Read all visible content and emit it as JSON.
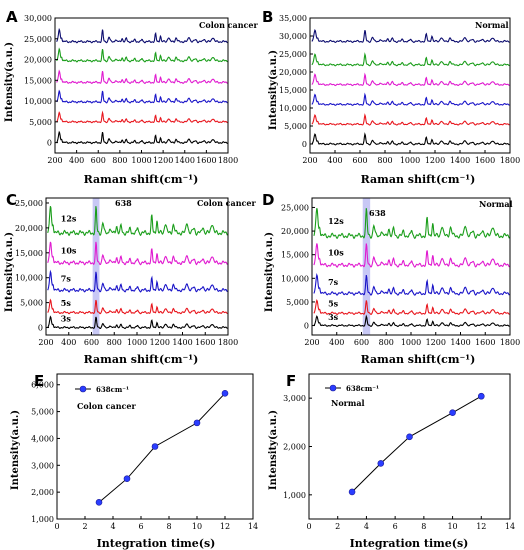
{
  "figure": {
    "background": "#ffffff"
  },
  "chart_data": [
    {
      "id": "A",
      "type": "line",
      "panel_label": "A",
      "annotation": "Colon cancer",
      "xlabel": "Raman shift(cm⁻¹)",
      "ylabel": "Intensity(a.u.)",
      "xlim": [
        200,
        1800
      ],
      "ylim": [
        -2500,
        30000
      ],
      "xticks": [
        200,
        400,
        600,
        800,
        1000,
        1200,
        1400,
        1600,
        1800
      ],
      "yticks": [
        0,
        5000,
        10000,
        15000,
        20000,
        25000,
        30000
      ],
      "ytick_labels": [
        "0",
        "5,000",
        "10,000",
        "15,000",
        "20,000",
        "25,000",
        "30,000"
      ],
      "series": [
        {
          "color": "#000000",
          "offset": 0,
          "scale": 2600
        },
        {
          "color": "#e8171e",
          "offset": 5000,
          "scale": 2300
        },
        {
          "color": "#1a14c8",
          "offset": 9800,
          "scale": 2700
        },
        {
          "color": "#e01bd0",
          "offset": 14500,
          "scale": 2800
        },
        {
          "color": "#1b9e1b",
          "offset": 19700,
          "scale": 2900
        },
        {
          "color": "#0b0b6e",
          "offset": 24300,
          "scale": 3000
        }
      ]
    },
    {
      "id": "B",
      "type": "line",
      "panel_label": "B",
      "annotation": "Normal",
      "xlabel": "Raman shift(cm⁻¹)",
      "ylabel": "Intensity(a.u.)",
      "xlim": [
        200,
        1800
      ],
      "ylim": [
        -2500,
        35000
      ],
      "xticks": [
        200,
        400,
        600,
        800,
        1000,
        1200,
        1400,
        1600,
        1800
      ],
      "yticks": [
        0,
        5000,
        10000,
        15000,
        20000,
        25000,
        30000,
        35000
      ],
      "ytick_labels": [
        "0",
        "5,000",
        "10,000",
        "15,000",
        "20,000",
        "25,000",
        "30,000",
        "35,000"
      ],
      "series": [
        {
          "color": "#000000",
          "offset": 0,
          "scale": 2800
        },
        {
          "color": "#e8171e",
          "offset": 5500,
          "scale": 2600
        },
        {
          "color": "#1a14c8",
          "offset": 11000,
          "scale": 2800
        },
        {
          "color": "#e01bd0",
          "offset": 16500,
          "scale": 2900
        },
        {
          "color": "#1b9e1b",
          "offset": 22000,
          "scale": 3000
        },
        {
          "color": "#0b0b6e",
          "offset": 28500,
          "scale": 3200
        }
      ]
    },
    {
      "id": "C",
      "type": "line",
      "panel_label": "C",
      "annotation": "Colon cancer",
      "peak_label": "638",
      "highlight": [
        610,
        670
      ],
      "xlabel": "Raman shift(cm⁻¹)",
      "ylabel": "Intensity(a.u.)",
      "xlim": [
        200,
        1800
      ],
      "ylim": [
        -1500,
        26000
      ],
      "xticks": [
        200,
        400,
        600,
        800,
        1000,
        1200,
        1400,
        1600,
        1800
      ],
      "yticks": [
        0,
        5000,
        10000,
        15000,
        20000,
        25000
      ],
      "ytick_labels": [
        "0",
        "5,000",
        "10,000",
        "15,000",
        "20,000",
        "25,000"
      ],
      "series": [
        {
          "name": "3s",
          "color": "#000000",
          "offset": 0,
          "scale": 2200
        },
        {
          "name": "5s",
          "color": "#e8171e",
          "offset": 3000,
          "scale": 2600
        },
        {
          "name": "7s",
          "color": "#1a14c8",
          "offset": 7500,
          "scale": 3800
        },
        {
          "name": "10s",
          "color": "#e01bd0",
          "offset": 13000,
          "scale": 4300
        },
        {
          "name": "12s",
          "color": "#1b9e1b",
          "offset": 19000,
          "scale": 5500
        }
      ]
    },
    {
      "id": "D",
      "type": "line",
      "panel_label": "D",
      "annotation": "Normal",
      "peak_label": "638",
      "highlight": [
        610,
        670
      ],
      "xlabel": "Raman shift(cm⁻¹)",
      "ylabel": "Intensity(a.u.)",
      "xlim": [
        200,
        1800
      ],
      "ylim": [
        -2000,
        27000
      ],
      "xticks": [
        200,
        400,
        600,
        800,
        1000,
        1200,
        1400,
        1600,
        1800
      ],
      "yticks": [
        0,
        5000,
        10000,
        15000,
        20000,
        25000
      ],
      "ytick_labels": [
        "0",
        "5,000",
        "10,000",
        "15,000",
        "20,000",
        "25,000"
      ],
      "series": [
        {
          "name": "3s",
          "color": "#000000",
          "offset": 0,
          "scale": 2000
        },
        {
          "name": "5s",
          "color": "#e8171e",
          "offset": 2600,
          "scale": 2800
        },
        {
          "name": "7s",
          "color": "#1a14c8",
          "offset": 6800,
          "scale": 4000
        },
        {
          "name": "10s",
          "color": "#e01bd0",
          "offset": 12800,
          "scale": 4700
        },
        {
          "name": "12s",
          "color": "#1b9e1b",
          "offset": 19000,
          "scale": 6000
        }
      ]
    },
    {
      "id": "E",
      "type": "line",
      "panel_label": "E",
      "annotation": "Colon cancer",
      "xlabel": "Integration time(s)",
      "ylabel": "Intensity(a.u.)",
      "xlim": [
        0,
        14
      ],
      "ylim": [
        1000,
        6400
      ],
      "xticks": [
        0,
        2,
        4,
        6,
        8,
        10,
        12,
        14
      ],
      "yticks": [
        1000,
        2000,
        3000,
        4000,
        5000,
        6000
      ],
      "ytick_labels": [
        "1,000",
        "2,000",
        "3,000",
        "4,000",
        "5,000",
        "6,000"
      ],
      "legend": "638cm⁻¹",
      "legend_position": "top-left",
      "x": [
        3,
        5,
        7,
        10,
        12
      ],
      "y": [
        1620,
        2500,
        3700,
        4580,
        5680
      ],
      "line_color": "#000000",
      "marker_color": "#2a3dff"
    },
    {
      "id": "F",
      "type": "line",
      "panel_label": "F",
      "annotation": "Normal",
      "xlabel": "Integration time(s)",
      "ylabel": "Intensity(a.u.)",
      "xlim": [
        0,
        14
      ],
      "ylim": [
        500,
        3500
      ],
      "xticks": [
        0,
        2,
        4,
        6,
        8,
        10,
        12,
        14
      ],
      "yticks": [
        1000,
        2000,
        3000
      ],
      "ytick_labels": [
        "1,000",
        "2,000",
        "3,000"
      ],
      "legend": "638cm⁻¹",
      "legend_position": "top-left",
      "x": [
        3,
        5,
        7,
        10,
        12
      ],
      "y": [
        1060,
        1650,
        2200,
        2700,
        3040
      ],
      "line_color": "#000000",
      "marker_color": "#2a3dff"
    }
  ]
}
